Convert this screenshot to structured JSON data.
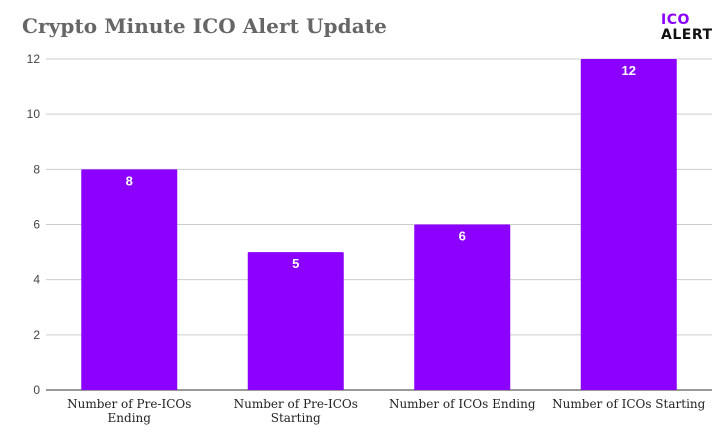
{
  "logo": {
    "line1": "ICO",
    "line2": "ALERT",
    "accent_color": "#8b00ff"
  },
  "chart_data": {
    "type": "bar",
    "title": "Crypto Minute ICO Alert Update",
    "categories": [
      [
        "Number of Pre-ICOs",
        "Ending"
      ],
      [
        "Number of Pre-ICOs",
        "Starting"
      ],
      [
        "Number of ICOs Ending"
      ],
      [
        "Number of ICOs Starting"
      ]
    ],
    "values": [
      8,
      5,
      6,
      12
    ],
    "data_labels": [
      "8",
      "5",
      "6",
      "12"
    ],
    "yticks": [
      0,
      2,
      4,
      6,
      8,
      10,
      12
    ],
    "ylim": [
      0,
      12
    ],
    "bar_color": "#8b00ff",
    "grid": true,
    "legend": false
  }
}
